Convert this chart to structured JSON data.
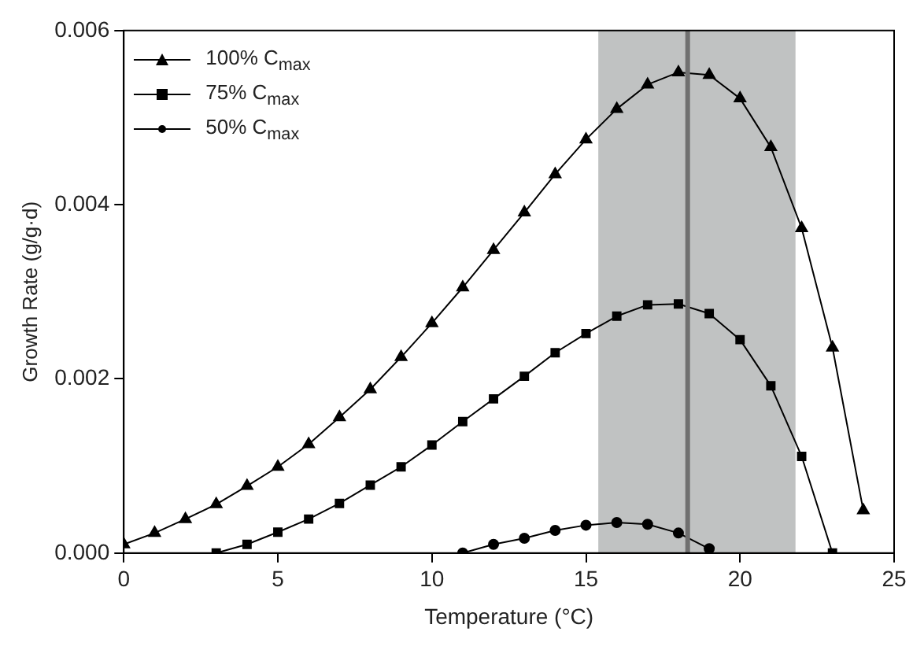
{
  "chart_data": {
    "type": "line",
    "xlabel": "Temperature (°C)",
    "ylabel": "Growth Rate (g/g·d)",
    "xlim": [
      0,
      25
    ],
    "xticks": [
      0,
      5,
      10,
      15,
      20,
      25
    ],
    "ylim": [
      0,
      0.006
    ],
    "yticks": [
      {
        "value": 0,
        "label": "0.000"
      },
      {
        "value": 0.002,
        "label": "0.002"
      },
      {
        "value": 0.004,
        "label": "0.004"
      },
      {
        "value": 0.006,
        "label": "0.006"
      }
    ],
    "grid": false,
    "legend": "top left",
    "line_style": "solid",
    "series": [
      {
        "name": "100% C$_{max}$",
        "color": "#000000",
        "marker": "triangle",
        "x": [
          0,
          1,
          2,
          3,
          4,
          5,
          6,
          7,
          8,
          9,
          10,
          11,
          12,
          13,
          14,
          15,
          16,
          17,
          18,
          19,
          20,
          21,
          22,
          23,
          24
        ],
        "values": [
          0.0001,
          0.00023,
          0.00039,
          0.00056,
          0.00077,
          0.00099,
          0.00125,
          0.00156,
          0.00188,
          0.00225,
          0.00264,
          0.00305,
          0.00348,
          0.00391,
          0.00435,
          0.00475,
          0.0051,
          0.00538,
          0.00552,
          0.00549,
          0.00522,
          0.00466,
          0.00373,
          0.00236,
          0.00049
        ]
      },
      {
        "name": "75% C$_{max}$",
        "color": "#000000",
        "marker": "square",
        "x": [
          3,
          4,
          5,
          6,
          7,
          8,
          9,
          10,
          11,
          12,
          13,
          14,
          15,
          16,
          17,
          18,
          19,
          20,
          21,
          22,
          23
        ],
        "values": [
          0,
          0.0001,
          0.00024,
          0.00039,
          0.00057,
          0.00078,
          0.00099,
          0.00124,
          0.00151,
          0.00177,
          0.00203,
          0.0023,
          0.00252,
          0.00272,
          0.00285,
          0.00286,
          0.00275,
          0.00245,
          0.00192,
          0.00111,
          0
        ]
      },
      {
        "name": "50% C$_{max}$",
        "color": "#000000",
        "marker": "circle",
        "x": [
          11,
          12,
          13,
          14,
          15,
          16,
          17,
          18,
          19
        ],
        "values": [
          0,
          0.0001,
          0.00017,
          0.00026,
          0.00032,
          0.00035,
          0.00033,
          0.00023,
          5e-05
        ]
      }
    ],
    "bands": [
      {
        "axis": "x",
        "from": 15.4,
        "to": 21.8,
        "color": "#c0c2c2"
      }
    ],
    "ref_lines": [
      {
        "axis": "x",
        "value": 18.3,
        "color": "#707070"
      }
    ]
  }
}
